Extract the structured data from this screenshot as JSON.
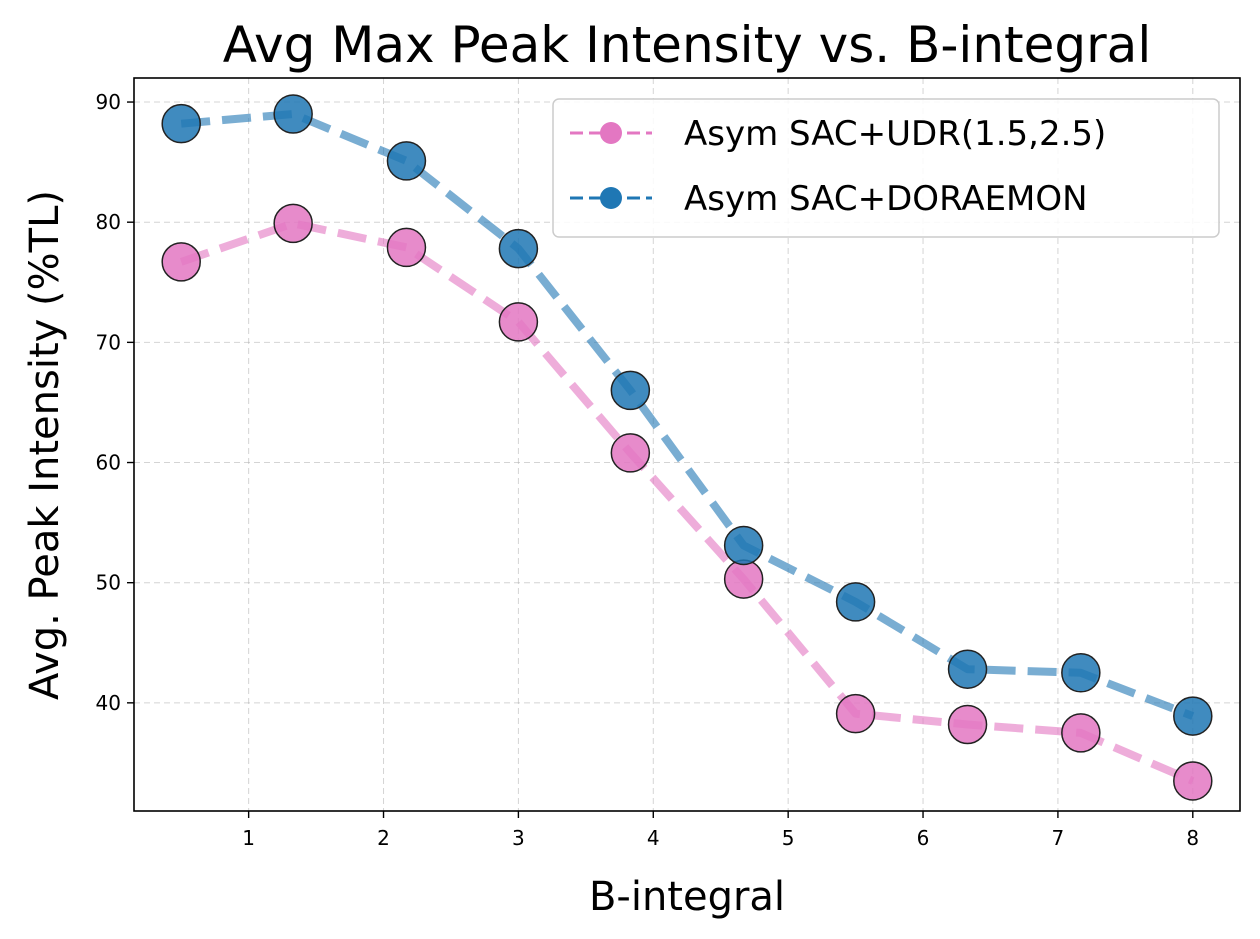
{
  "chart_data": {
    "type": "line",
    "title": "Avg Max Peak Intensity vs. B-integral",
    "xlabel": "B-integral",
    "ylabel": "Avg. Peak Intensity (%TL)",
    "xlim": [
      0.15,
      8.35
    ],
    "ylim": [
      31,
      92
    ],
    "xticks": [
      1,
      2,
      3,
      4,
      5,
      6,
      7,
      8
    ],
    "yticks": [
      40,
      50,
      60,
      70,
      80,
      90
    ],
    "grid": true,
    "legend_position": "top-right",
    "x": [
      0.5,
      1.33,
      2.17,
      3.0,
      3.83,
      4.67,
      5.5,
      6.33,
      7.17,
      8.0
    ],
    "series": [
      {
        "name": "Asym SAC+UDR(1.5,2.5)",
        "color": "#e377c2",
        "line_style": "dashed",
        "marker": "circle",
        "values": [
          76.7,
          79.9,
          77.9,
          71.7,
          60.8,
          50.3,
          39.1,
          38.2,
          37.5,
          33.5
        ]
      },
      {
        "name": "Asym SAC+DORAEMON",
        "color": "#1f77b4",
        "line_style": "dashed",
        "marker": "circle",
        "values": [
          88.2,
          89.0,
          85.1,
          77.8,
          66.0,
          53.1,
          48.4,
          42.8,
          42.5,
          38.9
        ]
      }
    ]
  }
}
